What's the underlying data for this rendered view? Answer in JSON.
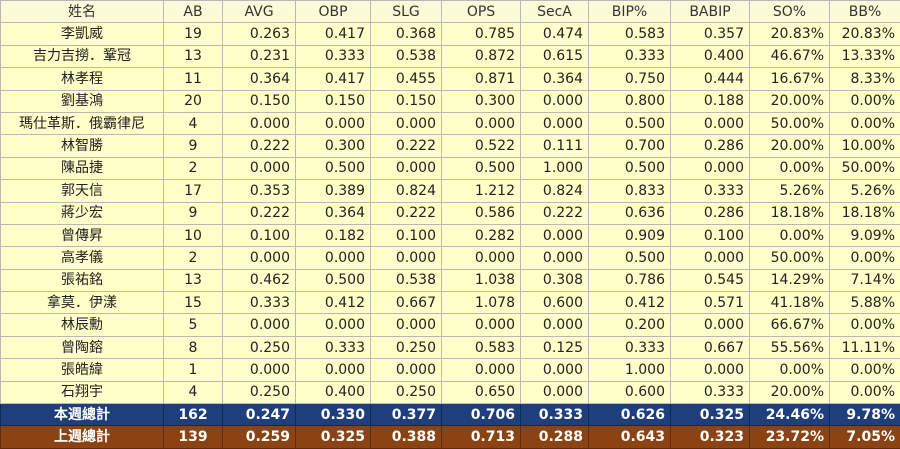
{
  "headers": [
    "姓名",
    "AB",
    "AVG",
    "OBP",
    "SLG",
    "OPS",
    "SecA",
    "BIP%",
    "BABIP",
    "SO%",
    "BB%"
  ],
  "players": [
    [
      "李凱威",
      "19",
      "0.263",
      "0.417",
      "0.368",
      "0.785",
      "0.474",
      "0.583",
      "0.357",
      "20.83%",
      "20.83%"
    ],
    [
      "吉力吉撈．鞏冠",
      "13",
      "0.231",
      "0.333",
      "0.538",
      "0.872",
      "0.615",
      "0.333",
      "0.400",
      "46.67%",
      "13.33%"
    ],
    [
      "林孝程",
      "11",
      "0.364",
      "0.417",
      "0.455",
      "0.871",
      "0.364",
      "0.750",
      "0.444",
      "16.67%",
      "8.33%"
    ],
    [
      "劉基鴻",
      "20",
      "0.150",
      "0.150",
      "0.150",
      "0.300",
      "0.000",
      "0.800",
      "0.188",
      "20.00%",
      "0.00%"
    ],
    [
      "瑪仕革斯．俄霸律尼",
      "4",
      "0.000",
      "0.000",
      "0.000",
      "0.000",
      "0.000",
      "0.500",
      "0.000",
      "50.00%",
      "0.00%"
    ],
    [
      "林智勝",
      "9",
      "0.222",
      "0.300",
      "0.222",
      "0.522",
      "0.111",
      "0.700",
      "0.286",
      "20.00%",
      "10.00%"
    ],
    [
      "陳品捷",
      "2",
      "0.000",
      "0.500",
      "0.000",
      "0.500",
      "1.000",
      "0.500",
      "0.000",
      "0.00%",
      "50.00%"
    ],
    [
      "郭天信",
      "17",
      "0.353",
      "0.389",
      "0.824",
      "1.212",
      "0.824",
      "0.833",
      "0.333",
      "5.26%",
      "5.26%"
    ],
    [
      "蔣少宏",
      "9",
      "0.222",
      "0.364",
      "0.222",
      "0.586",
      "0.222",
      "0.636",
      "0.286",
      "18.18%",
      "18.18%"
    ],
    [
      "曾傳昇",
      "10",
      "0.100",
      "0.182",
      "0.100",
      "0.282",
      "0.000",
      "0.909",
      "0.100",
      "0.00%",
      "9.09%"
    ],
    [
      "高孝儀",
      "2",
      "0.000",
      "0.000",
      "0.000",
      "0.000",
      "0.000",
      "0.500",
      "0.000",
      "50.00%",
      "0.00%"
    ],
    [
      "張祐銘",
      "13",
      "0.462",
      "0.500",
      "0.538",
      "1.038",
      "0.308",
      "0.786",
      "0.545",
      "14.29%",
      "7.14%"
    ],
    [
      "拿莫．伊漾",
      "15",
      "0.333",
      "0.412",
      "0.667",
      "1.078",
      "0.600",
      "0.412",
      "0.571",
      "41.18%",
      "5.88%"
    ],
    [
      "林辰勳",
      "5",
      "0.000",
      "0.000",
      "0.000",
      "0.000",
      "0.000",
      "0.200",
      "0.000",
      "66.67%",
      "0.00%"
    ],
    [
      "曾陶鎔",
      "8",
      "0.250",
      "0.333",
      "0.250",
      "0.583",
      "0.125",
      "0.333",
      "0.667",
      "55.56%",
      "11.11%"
    ],
    [
      "張皓緯",
      "1",
      "0.000",
      "0.000",
      "0.000",
      "0.000",
      "0.000",
      "1.000",
      "0.000",
      "0.00%",
      "0.00%"
    ],
    [
      "石翔宇",
      "4",
      "0.250",
      "0.400",
      "0.250",
      "0.650",
      "0.000",
      "0.600",
      "0.333",
      "20.00%",
      "0.00%"
    ]
  ],
  "totals_this_week": [
    "本週總計",
    "162",
    "0.247",
    "0.330",
    "0.377",
    "0.706",
    "0.333",
    "0.626",
    "0.325",
    "24.46%",
    "9.78%"
  ],
  "totals_last_week": [
    "上週總計",
    "139",
    "0.259",
    "0.325",
    "0.388",
    "0.713",
    "0.288",
    "0.643",
    "0.323",
    "23.72%",
    "7.05%"
  ],
  "colors": {
    "header_bg": "#fbfbd8",
    "row_bg": "#ffffc9",
    "this_week_bg": "#1f3f7c",
    "last_week_bg": "#8b4313",
    "total_text": "#ffffff"
  }
}
